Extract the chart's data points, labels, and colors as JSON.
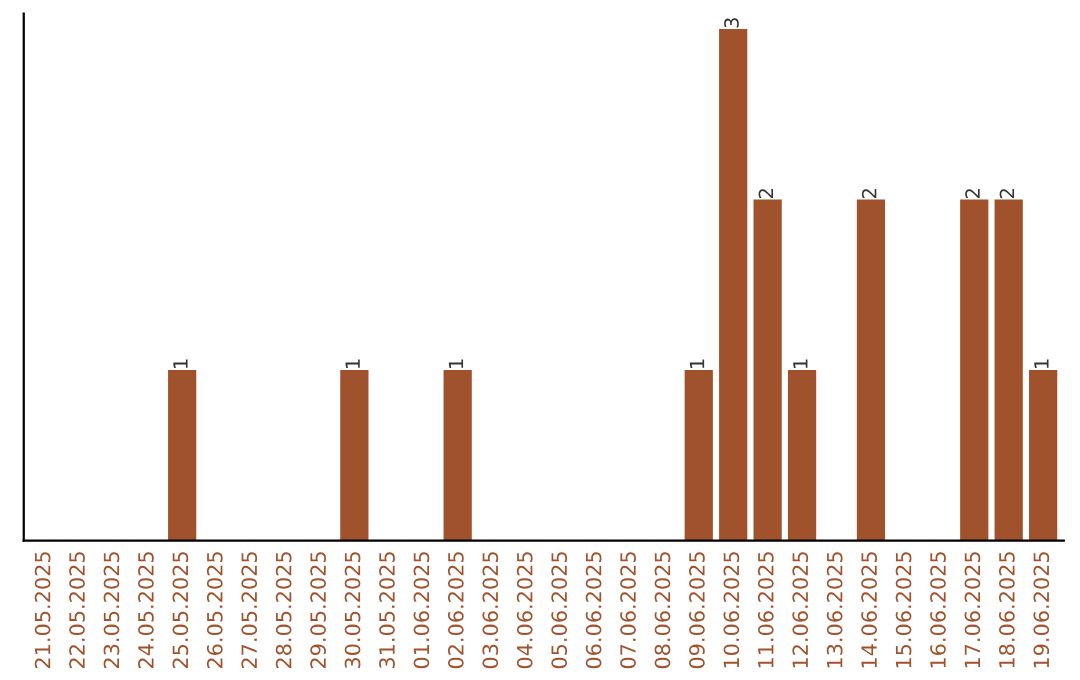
{
  "chart_data": {
    "type": "bar",
    "categories": [
      "21.05.2025",
      "22.05.2025",
      "23.05.2025",
      "24.05.2025",
      "25.05.2025",
      "26.05.2025",
      "27.05.2025",
      "28.05.2025",
      "29.05.2025",
      "30.05.2025",
      "31.05.2025",
      "01.06.2025",
      "02.06.2025",
      "03.06.2025",
      "04.06.2025",
      "05.06.2025",
      "06.06.2025",
      "07.06.2025",
      "08.06.2025",
      "09.06.2025",
      "10.06.2025",
      "11.06.2025",
      "12.06.2025",
      "13.06.2025",
      "14.06.2025",
      "15.06.2025",
      "16.06.2025",
      "17.06.2025",
      "18.06.2025",
      "19.06.2025"
    ],
    "values": [
      0,
      0,
      0,
      0,
      1,
      0,
      0,
      0,
      0,
      1,
      0,
      0,
      1,
      0,
      0,
      0,
      0,
      0,
      0,
      1,
      3,
      2,
      1,
      0,
      2,
      0,
      0,
      2,
      2,
      1
    ],
    "value_labels": [
      null,
      null,
      null,
      null,
      "1",
      null,
      null,
      null,
      null,
      "1",
      null,
      null,
      "1",
      null,
      null,
      null,
      null,
      null,
      null,
      "1",
      "3",
      "2",
      "1",
      null,
      "2",
      null,
      null,
      "2",
      "2",
      "1"
    ],
    "color": "#a0522d",
    "tick_labels": "x",
    "grid": false
  }
}
